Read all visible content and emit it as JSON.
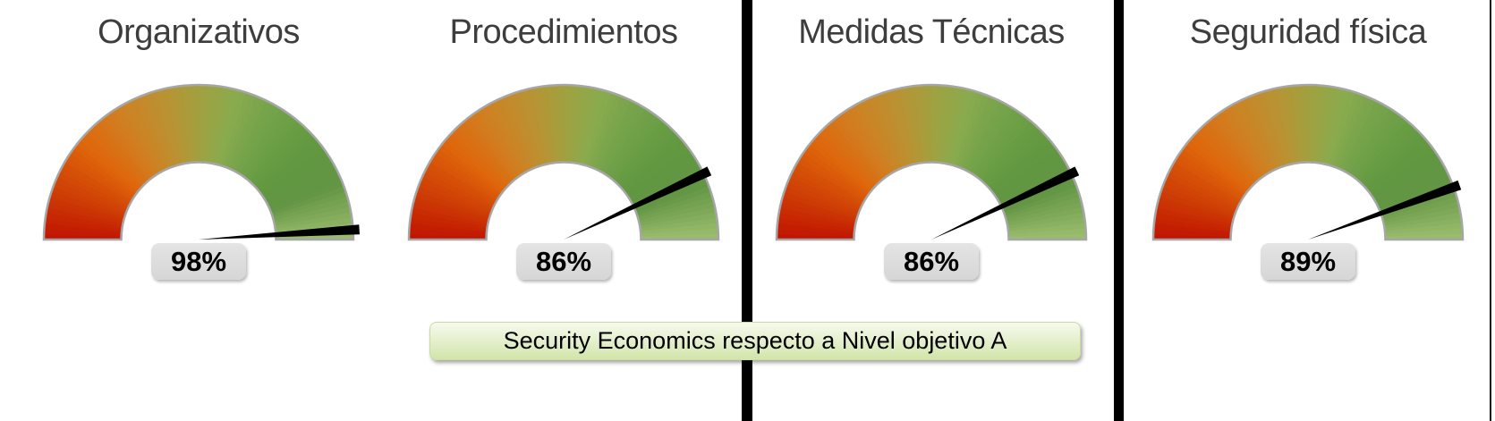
{
  "chart_data": [
    {
      "type": "gauge",
      "title": "Organizativos",
      "value_percent": 98,
      "value_label": "98%",
      "min": 0,
      "max": 100,
      "start_angle_deg": 180,
      "end_angle_deg": 0
    },
    {
      "type": "gauge",
      "title": "Procedimientos",
      "value_percent": 86,
      "value_label": "86%",
      "min": 0,
      "max": 100,
      "start_angle_deg": 180,
      "end_angle_deg": 0
    },
    {
      "type": "gauge",
      "title": "Medidas Técnicas",
      "value_percent": 86,
      "value_label": "86%",
      "min": 0,
      "max": 100,
      "start_angle_deg": 180,
      "end_angle_deg": 0
    },
    {
      "type": "gauge",
      "title": "Seguridad física",
      "value_percent": 89,
      "value_label": "89%",
      "min": 0,
      "max": 100,
      "start_angle_deg": 180,
      "end_angle_deg": 0
    }
  ],
  "caption": {
    "text": "Security Economics respecto a Nivel objetivo A",
    "background_top": "#f6faee",
    "background_bottom": "#d2e5aa",
    "border_color": "#cadba2",
    "text_color": "#000000"
  },
  "gauge_style": {
    "gradient_stops": [
      {
        "t": 0.0,
        "color": "#c11301"
      },
      {
        "t": 0.1,
        "color": "#cd3c05"
      },
      {
        "t": 0.22,
        "color": "#df660b"
      },
      {
        "t": 0.32,
        "color": "#d07f22"
      },
      {
        "t": 0.42,
        "color": "#bb9232"
      },
      {
        "t": 0.5,
        "color": "#a2a03f"
      },
      {
        "t": 0.58,
        "color": "#8aab4e"
      },
      {
        "t": 0.66,
        "color": "#74a34a"
      },
      {
        "t": 0.78,
        "color": "#619840"
      },
      {
        "t": 0.88,
        "color": "#629544"
      },
      {
        "t": 1.0,
        "color": "#9dbe6f"
      }
    ],
    "ring_outline_color": "#a6a6a6",
    "needle_color": "#000000",
    "badge_background": "#d6d6d6",
    "badge_text_color": "#000000",
    "title_color": "#3d3d3d"
  },
  "dividers": {
    "color": "#000000"
  }
}
